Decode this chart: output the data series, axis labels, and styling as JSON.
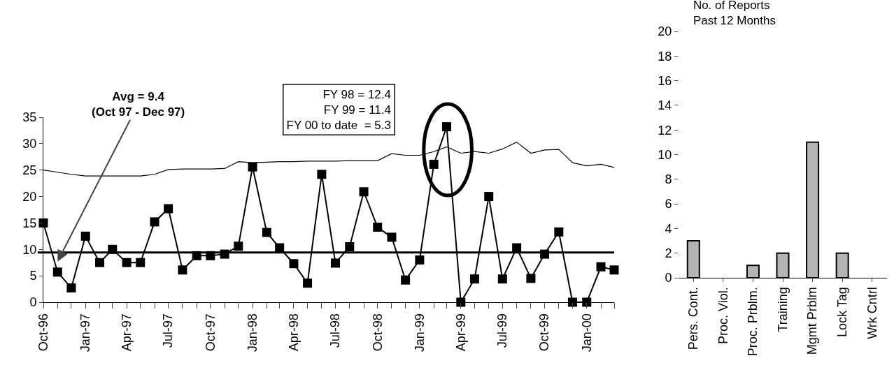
{
  "chart_data": [
    {
      "type": "line",
      "x": [
        "1996-10",
        "1996-11",
        "1996-12",
        "1997-01",
        "1997-02",
        "1997-03",
        "1997-04",
        "1997-05",
        "1997-06",
        "1997-07",
        "1997-08",
        "1997-09",
        "1997-10",
        "1997-11",
        "1997-12",
        "1998-01",
        "1998-02",
        "1998-03",
        "1998-04",
        "1998-05",
        "1998-06",
        "1998-07",
        "1998-08",
        "1998-09",
        "1998-10",
        "1998-11",
        "1998-12",
        "1999-01",
        "1999-02",
        "1999-03",
        "1999-04",
        "1999-05",
        "1999-06",
        "1999-07",
        "1999-08",
        "1999-09",
        "1999-10",
        "1999-11",
        "1999-12",
        "2000-01",
        "2000-02",
        "2000-03"
      ],
      "series": [
        {
          "color": "#000000",
          "values": [
            15,
            5.7,
            2.7,
            12.5,
            7.5,
            10,
            7.5,
            7.5,
            15.2,
            17.7,
            6.1,
            8.8,
            8.8,
            9.1,
            10.6,
            25.6,
            13.2,
            10.3,
            7.3,
            3.6,
            24.2,
            7.4,
            10.5,
            20.9,
            14.2,
            12.3,
            4.2,
            8,
            26.1,
            33.2,
            0,
            4.4,
            20,
            4.4,
            10.3,
            4.5,
            9.1,
            13.3,
            0,
            0,
            6.7,
            6.1
          ]
        },
        {
          "color": "#000000",
          "marker": "none",
          "values": [
            25,
            24.6,
            24.2,
            23.9,
            23.9,
            23.9,
            23.9,
            23.9,
            24.2,
            25.1,
            25.2,
            25.2,
            25.2,
            25.3,
            26.6,
            26.4,
            26.5,
            26.6,
            26.6,
            26.7,
            26.7,
            26.7,
            26.8,
            26.8,
            26.8,
            28.1,
            27.8,
            27.8,
            28.5,
            29.4,
            28.2,
            28.5,
            28.2,
            29,
            30.3,
            28.2,
            28.8,
            28.9,
            26.4,
            25.8,
            26.1,
            25.5
          ]
        }
      ],
      "marker": "square",
      "line_style": "solid",
      "xlim": [
        "1996-10",
        "2000-03"
      ],
      "xticks": [
        {
          "value": "1996-10",
          "label": "Oct-96"
        },
        {
          "value": "1996-11",
          "label": null
        },
        {
          "value": "1996-12",
          "label": null
        },
        {
          "value": "1997-01",
          "label": "Jan-97"
        },
        {
          "value": "1997-02",
          "label": null
        },
        {
          "value": "1997-03",
          "label": null
        },
        {
          "value": "1997-04",
          "label": "Apr-97"
        },
        {
          "value": "1997-05",
          "label": null
        },
        {
          "value": "1997-06",
          "label": null
        },
        {
          "value": "1997-07",
          "label": "Jul-97"
        },
        {
          "value": "1997-08",
          "label": null
        },
        {
          "value": "1997-09",
          "label": null
        },
        {
          "value": "1997-10",
          "label": "Oct-97"
        },
        {
          "value": "1997-11",
          "label": null
        },
        {
          "value": "1997-12",
          "label": null
        },
        {
          "value": "1998-01",
          "label": "Jan-98"
        },
        {
          "value": "1998-02",
          "label": null
        },
        {
          "value": "1998-03",
          "label": null
        },
        {
          "value": "1998-04",
          "label": "Apr-98"
        },
        {
          "value": "1998-05",
          "label": null
        },
        {
          "value": "1998-06",
          "label": null
        },
        {
          "value": "1998-07",
          "label": "Jul-98"
        },
        {
          "value": "1998-08",
          "label": null
        },
        {
          "value": "1998-09",
          "label": null
        },
        {
          "value": "1998-10",
          "label": "Oct-98"
        },
        {
          "value": "1998-11",
          "label": null
        },
        {
          "value": "1998-12",
          "label": null
        },
        {
          "value": "1999-01",
          "label": "Jan-99"
        },
        {
          "value": "1999-02",
          "label": null
        },
        {
          "value": "1999-03",
          "label": null
        },
        {
          "value": "1999-04",
          "label": "Apr-99"
        },
        {
          "value": "1999-05",
          "label": null
        },
        {
          "value": "1999-06",
          "label": null
        },
        {
          "value": "1999-07",
          "label": "Jul-99"
        },
        {
          "value": "1999-08",
          "label": null
        },
        {
          "value": "1999-09",
          "label": null
        },
        {
          "value": "1999-10",
          "label": "Oct-99"
        },
        {
          "value": "1999-11",
          "label": null
        },
        {
          "value": "1999-12",
          "label": null
        },
        {
          "value": "2000-01",
          "label": "Jan-00"
        },
        {
          "value": "2000-02",
          "label": null
        },
        {
          "value": "2000-03",
          "label": null
        }
      ],
      "ylim": [
        0,
        35
      ],
      "yticks": [
        0,
        5,
        10,
        15,
        20,
        25,
        30,
        35
      ],
      "ref_lines": [
        {
          "axis": "y",
          "value": 9.4,
          "color": "#000000"
        }
      ],
      "annotations": [
        {
          "text": "Avg = 9.4\n(Oct 97 - Dec 97)",
          "x": "1996-11",
          "y": 7.7
        },
        "FY 98 = 12.4\nFY 99 = 11.4\nFY 00 to date  = 5.3"
      ]
    },
    {
      "type": "bar",
      "title": "No. of Reports\nPast 12 Months",
      "categories": [
        "Pers. Cont.",
        "Proc. Viol.",
        "Proc. Prblm.",
        "Training",
        "Mgmt Prblm",
        "Lock Tag",
        "Wrk Cntrl"
      ],
      "values": [
        3,
        0,
        1,
        2,
        11,
        2,
        0
      ],
      "color": "#b4b4b4",
      "ylim": [
        0,
        20
      ],
      "yticks": [
        0,
        2,
        4,
        6,
        8,
        10,
        12,
        14,
        16,
        18,
        20
      ]
    }
  ]
}
